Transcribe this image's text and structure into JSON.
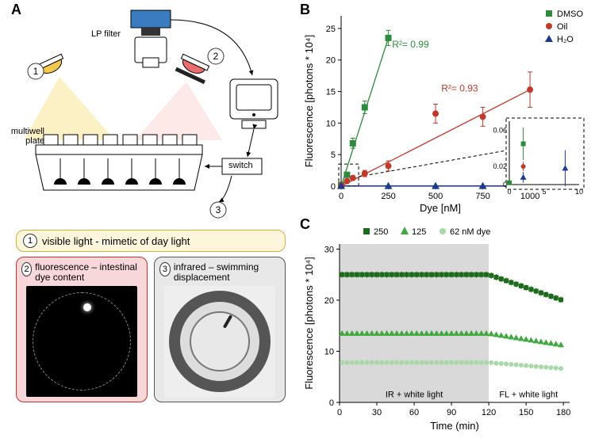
{
  "panel_labels": {
    "A": "A",
    "B": "B",
    "C": "C"
  },
  "panelA": {
    "lp_filter_label": "LP filter",
    "multiwell_label": "multiwell plate",
    "switch_label": "switch",
    "num1": "1",
    "num2": "2",
    "num3": "3",
    "colors": {
      "camera_blue": "#3b7bbf",
      "light1": "#f2c94c",
      "light2": "#eb6e6e",
      "beam1": "#f9e79f",
      "beam2": "#fadbd8"
    }
  },
  "bottom": {
    "box1_text": "visible light - mimetic of day light",
    "box2_text": "fluorescence – intestinal dye content",
    "box3_text": "infrared – swimming displacement",
    "num1": "1",
    "num2": "2",
    "num3": "3",
    "box1_bg": "#fdf6dc",
    "box1_border": "#d4af37",
    "box2_bg": "#f8d7da",
    "box2_border": "#c9302c",
    "box3_bg": "#e8e8e8",
    "box3_border": "#555"
  },
  "panelB": {
    "type": "scatter-linefit",
    "xlabel": "Dye [nM]",
    "ylabel": "Fluorescence [photons * 10⁴]",
    "xlim": [
      0,
      1050
    ],
    "ylim": [
      0,
      27
    ],
    "xticks": [
      0,
      250,
      500,
      750,
      1000
    ],
    "yticks": [
      0,
      5,
      10,
      15,
      20,
      25
    ],
    "legend": [
      {
        "label": "DMSO",
        "color": "#2e8b3d",
        "shape": "square"
      },
      {
        "label": "Oil",
        "color": "#c0392b",
        "shape": "circle"
      },
      {
        "label": "H₂O",
        "color": "#1f3a93",
        "shape": "triangle"
      }
    ],
    "r2_dmso": "R²= 0.99",
    "r2_oil": "R²= 0.93",
    "series": {
      "dmso": {
        "color": "#2e8b3d",
        "x": [
          0,
          31,
          62,
          125,
          250
        ],
        "y": [
          0.2,
          1.8,
          6.8,
          12.5,
          23.5
        ],
        "err": [
          0.1,
          0.3,
          0.8,
          1.0,
          1.2
        ]
      },
      "oil": {
        "color": "#c0392b",
        "x": [
          0,
          31,
          62,
          125,
          250,
          500,
          750,
          1000
        ],
        "y": [
          0.1,
          0.8,
          1.3,
          2.0,
          3.2,
          11.5,
          11.0,
          15.3
        ],
        "err": [
          0.1,
          0.3,
          0.3,
          0.5,
          0.8,
          1.5,
          1.5,
          2.8
        ]
      },
      "h2o": {
        "color": "#1f3a93",
        "x": [
          0,
          250,
          500,
          750,
          1000
        ],
        "y": [
          0.05,
          0.05,
          0.05,
          0.05,
          0.05
        ],
        "err": [
          0.01,
          0.01,
          0.01,
          0.01,
          0.01
        ]
      }
    },
    "inset": {
      "xlim": [
        0,
        10
      ],
      "ylim": [
        0,
        0.07
      ],
      "xticks": [
        0,
        5,
        10
      ],
      "yticks": [
        0.0,
        0.02,
        0.06
      ],
      "points": [
        {
          "x": 0,
          "y": 0.002,
          "color": "#2e8b3d",
          "shape": "square",
          "err": 0.001
        },
        {
          "x": 2,
          "y": 0.02,
          "color": "#c0392b",
          "shape": "circle",
          "err": 0.005
        },
        {
          "x": 2,
          "y": 0.045,
          "color": "#2e8b3d",
          "shape": "square",
          "err": 0.018
        },
        {
          "x": 2,
          "y": 0.008,
          "color": "#1f3a93",
          "shape": "triangle",
          "err": 0.006
        },
        {
          "x": 8,
          "y": 0.018,
          "color": "#1f3a93",
          "shape": "triangle",
          "err": 0.02
        }
      ]
    }
  },
  "panelC": {
    "type": "timeseries",
    "xlabel": "Time (min)",
    "ylabel": "Fluorescence [photons * 10⁴]",
    "xlim": [
      0,
      185
    ],
    "ylim": [
      0,
      31
    ],
    "xticks": [
      0,
      30,
      60,
      90,
      120,
      150,
      180
    ],
    "yticks": [
      0,
      10,
      20,
      30
    ],
    "phase1_label": "IR + white light",
    "phase2_label": "FL + white light",
    "phase_split": 120,
    "shade_color": "#d9d9d9",
    "legend": [
      {
        "label": "250",
        "color": "#1b6b1b",
        "shape": "square"
      },
      {
        "label": "125",
        "color": "#3fa83f",
        "shape": "triangle"
      },
      {
        "label": "62 nM dye",
        "color": "#a8d8a8",
        "shape": "circle"
      }
    ],
    "series": {
      "s250": {
        "color": "#1b6b1b",
        "base": 25.0,
        "tstep": 4,
        "n": 45,
        "decay_after": 120,
        "decay_to": 19.5,
        "err": 0.6
      },
      "s125": {
        "color": "#3fa83f",
        "base": 13.5,
        "tstep": 4,
        "n": 45,
        "decay_after": 120,
        "decay_to": 11.0,
        "err": 0.5
      },
      "s62": {
        "color": "#a8d8a8",
        "base": 7.8,
        "tstep": 4,
        "n": 45,
        "decay_after": 120,
        "decay_to": 6.5,
        "err": 0.3
      }
    }
  }
}
